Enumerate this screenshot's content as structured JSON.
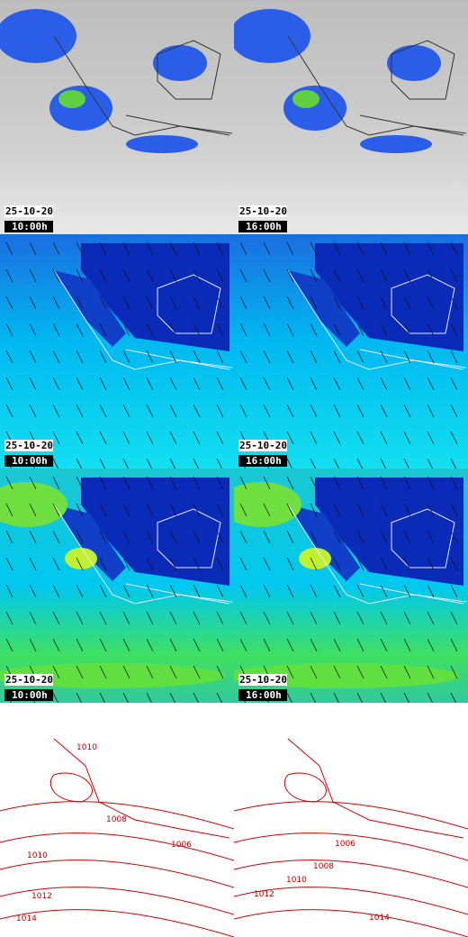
{
  "panels": [
    {
      "date": "25-10-20",
      "time": "10:00h"
    },
    {
      "date": "25-10-20",
      "time": "16:00h"
    },
    {
      "date": "25-10-20",
      "time": "10:00h"
    },
    {
      "date": "25-10-20",
      "time": "16:00h"
    },
    {
      "date": "25-10-20",
      "time": "10:00h"
    },
    {
      "date": "25-10-20",
      "time": "16:00h"
    }
  ],
  "isobars": {
    "left": [
      "1010",
      "1008",
      "1006",
      "1010",
      "1012",
      "1014"
    ],
    "right": [
      "1006",
      "1008",
      "1010",
      "1012",
      "1014"
    ]
  }
}
